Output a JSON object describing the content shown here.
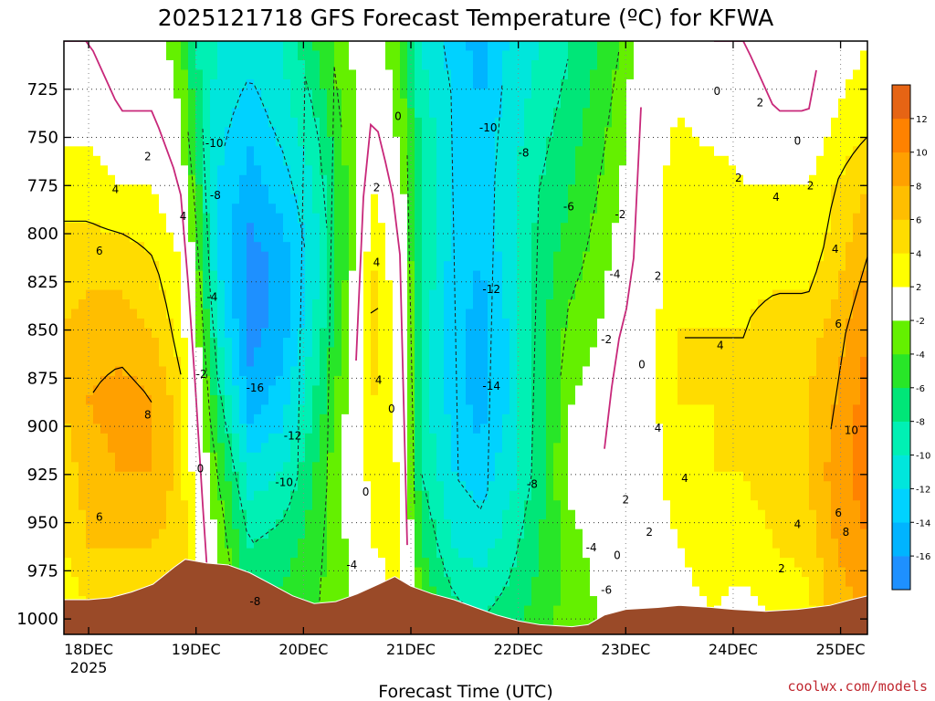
{
  "chart_data": {
    "type": "heatmap",
    "title": "2025121718 GFS Forecast Temperature (ºC) for KFWA",
    "xlabel": "Forecast Time (UTC)",
    "ylabel": "",
    "credit": "coolwx.com/models",
    "x_ticks": [
      {
        "day": 18,
        "label": "18DEC",
        "sublabel": "2025"
      },
      {
        "day": 19,
        "label": "19DEC"
      },
      {
        "day": 20,
        "label": "20DEC"
      },
      {
        "day": 21,
        "label": "21DEC"
      },
      {
        "day": 22,
        "label": "22DEC"
      },
      {
        "day": 23,
        "label": "23DEC"
      },
      {
        "day": 24,
        "label": "24DEC"
      },
      {
        "day": 25,
        "label": "25DEC"
      }
    ],
    "xlim": [
      17.77,
      25.25
    ],
    "y_ticks": [
      725,
      750,
      775,
      800,
      825,
      850,
      875,
      900,
      925,
      950,
      975,
      1000
    ],
    "ylim": [
      700,
      1008
    ],
    "y_axis_inverted": true,
    "colorbar": {
      "levels": [
        -18,
        -16,
        -14,
        -12,
        -10,
        -8,
        -6,
        -4,
        -2,
        2,
        4,
        6,
        8,
        10,
        12,
        14
      ],
      "tick_labels": [
        "-16",
        "-14",
        "-12",
        "-10",
        "-8",
        "-6",
        "-4",
        "-2",
        "2",
        "4",
        "6",
        "8",
        "10",
        "12"
      ],
      "colors": [
        "#1e90ff",
        "#00b4ff",
        "#00d2ff",
        "#00e6dc",
        "#00f0b4",
        "#00e678",
        "#28e628",
        "#64f000",
        "#ffffff",
        "#ffff00",
        "#ffdc00",
        "#ffbe00",
        "#ffa000",
        "#ff8200",
        "#e66414"
      ]
    },
    "terrain_color": "#9a4a28",
    "surface_pressure": [
      {
        "t": 17.77,
        "p": 990
      },
      {
        "t": 18.0,
        "p": 990
      },
      {
        "t": 18.2,
        "p": 989
      },
      {
        "t": 18.4,
        "p": 986
      },
      {
        "t": 18.6,
        "p": 982
      },
      {
        "t": 18.8,
        "p": 973
      },
      {
        "t": 18.9,
        "p": 969
      },
      {
        "t": 19.1,
        "p": 971
      },
      {
        "t": 19.3,
        "p": 972
      },
      {
        "t": 19.5,
        "p": 976
      },
      {
        "t": 19.7,
        "p": 982
      },
      {
        "t": 19.9,
        "p": 988
      },
      {
        "t": 20.1,
        "p": 992
      },
      {
        "t": 20.3,
        "p": 991
      },
      {
        "t": 20.5,
        "p": 987
      },
      {
        "t": 20.7,
        "p": 982
      },
      {
        "t": 20.85,
        "p": 978
      },
      {
        "t": 21.0,
        "p": 983
      },
      {
        "t": 21.2,
        "p": 987
      },
      {
        "t": 21.4,
        "p": 990
      },
      {
        "t": 21.6,
        "p": 994
      },
      {
        "t": 21.8,
        "p": 998
      },
      {
        "t": 22.0,
        "p": 1001
      },
      {
        "t": 22.2,
        "p": 1003
      },
      {
        "t": 22.5,
        "p": 1004
      },
      {
        "t": 22.65,
        "p": 1003
      },
      {
        "t": 22.8,
        "p": 998
      },
      {
        "t": 23.0,
        "p": 995
      },
      {
        "t": 23.3,
        "p": 994
      },
      {
        "t": 23.5,
        "p": 993
      },
      {
        "t": 23.8,
        "p": 994
      },
      {
        "t": 24.0,
        "p": 995
      },
      {
        "t": 24.3,
        "p": 996
      },
      {
        "t": 24.6,
        "p": 995
      },
      {
        "t": 24.9,
        "p": 993
      },
      {
        "t": 25.1,
        "p": 990
      },
      {
        "t": 25.25,
        "p": 988
      }
    ],
    "profiles": [
      {
        "t": 17.77,
        "temps": [
          0,
          1,
          3,
          5,
          6,
          6,
          5,
          4,
          2
        ]
      },
      {
        "t": 18.0,
        "temps": [
          0,
          1,
          3,
          5,
          7,
          8,
          7,
          6,
          4
        ]
      },
      {
        "t": 18.3,
        "temps": [
          -1,
          0,
          2,
          5,
          7,
          9,
          8,
          6,
          5
        ]
      },
      {
        "t": 18.6,
        "temps": [
          -1,
          0,
          2,
          4,
          6,
          8,
          8,
          6,
          5
        ]
      },
      {
        "t": 18.85,
        "temps": [
          -3,
          -2,
          0,
          2,
          3,
          5,
          5,
          5,
          6
        ]
      },
      {
        "t": 19.0,
        "temps": [
          -8,
          -7,
          -5,
          -3,
          -1,
          0,
          1,
          2,
          2
        ]
      },
      {
        "t": 19.2,
        "temps": [
          -10,
          -11,
          -12,
          -12,
          -10,
          -7,
          -4,
          -2,
          -1
        ]
      },
      {
        "t": 19.5,
        "temps": [
          -11,
          -13,
          -15,
          -17,
          -17,
          -15,
          -11,
          -8,
          -6
        ]
      },
      {
        "t": 19.8,
        "temps": [
          -10,
          -11,
          -13,
          -15,
          -15,
          -13,
          -10,
          -7,
          -5
        ]
      },
      {
        "t": 20.1,
        "temps": [
          -6,
          -8,
          -10,
          -11,
          -10,
          -8,
          -6,
          -5,
          -4
        ]
      },
      {
        "t": 20.4,
        "temps": [
          -2,
          -3,
          -4,
          -4,
          -3,
          -2,
          -1,
          -2,
          -3
        ]
      },
      {
        "t": 20.65,
        "temps": [
          -1,
          0,
          2,
          4,
          5,
          4,
          3,
          2,
          0
        ]
      },
      {
        "t": 20.9,
        "temps": [
          -3,
          -3,
          -1,
          0,
          1,
          1,
          2,
          3,
          3
        ]
      },
      {
        "t": 21.1,
        "temps": [
          -10,
          -9,
          -8,
          -8,
          -9,
          -9,
          -8,
          -6,
          -4
        ]
      },
      {
        "t": 21.4,
        "temps": [
          -13,
          -12,
          -12,
          -13,
          -13,
          -13,
          -12,
          -10,
          -7
        ]
      },
      {
        "t": 21.65,
        "temps": [
          -15,
          -14,
          -13,
          -14,
          -15,
          -15,
          -13,
          -11,
          -8
        ]
      },
      {
        "t": 21.9,
        "temps": [
          -12,
          -11,
          -11,
          -11,
          -12,
          -12,
          -11,
          -9,
          -7
        ]
      },
      {
        "t": 22.2,
        "temps": [
          -10,
          -9,
          -8,
          -7,
          -7,
          -7,
          -7,
          -6,
          -5
        ]
      },
      {
        "t": 22.5,
        "temps": [
          -8,
          -7,
          -6,
          -5,
          -3,
          -2,
          -1,
          -3,
          -3
        ]
      },
      {
        "t": 22.75,
        "temps": [
          -6,
          -5,
          -4,
          -3,
          -2,
          -1,
          0,
          -1,
          -2
        ]
      },
      {
        "t": 22.95,
        "temps": [
          -4,
          -3,
          -2,
          -1,
          0,
          1,
          1,
          1,
          0
        ]
      },
      {
        "t": 23.2,
        "temps": [
          0,
          1,
          1,
          1,
          1,
          1,
          1,
          1,
          1
        ]
      },
      {
        "t": 23.5,
        "temps": [
          1,
          2,
          3,
          3,
          4,
          4,
          3,
          2,
          1
        ]
      },
      {
        "t": 23.8,
        "temps": [
          0,
          1,
          3,
          3,
          4,
          4,
          4,
          3,
          2
        ]
      },
      {
        "t": 24.1,
        "temps": [
          0,
          1,
          2,
          3,
          4,
          4,
          4,
          3,
          1
        ]
      },
      {
        "t": 24.4,
        "temps": [
          -1,
          0,
          2,
          3,
          5,
          5,
          5,
          4,
          2
        ]
      },
      {
        "t": 24.7,
        "temps": [
          -1,
          0,
          2,
          3,
          5,
          6,
          6,
          5,
          3
        ]
      },
      {
        "t": 24.95,
        "temps": [
          1,
          2,
          4,
          5,
          7,
          8,
          9,
          8,
          7
        ]
      },
      {
        "t": 25.25,
        "temps": [
          2,
          3,
          6,
          8,
          10,
          11,
          11,
          10,
          8
        ]
      }
    ],
    "profile_pressures": [
      700,
      737,
      775,
      812,
      850,
      887,
      925,
      962,
      1000
    ],
    "contour_labels": [
      {
        "t": 18.55,
        "p": 760,
        "text": "2"
      },
      {
        "t": 18.25,
        "p": 777,
        "text": "4"
      },
      {
        "t": 18.88,
        "p": 791,
        "text": "4"
      },
      {
        "t": 18.1,
        "p": 809,
        "text": "6"
      },
      {
        "t": 18.55,
        "p": 894,
        "text": "8"
      },
      {
        "t": 18.1,
        "p": 947,
        "text": "6"
      },
      {
        "t": 19.05,
        "p": 873,
        "text": "-2"
      },
      {
        "t": 19.04,
        "p": 922,
        "text": "0"
      },
      {
        "t": 19.15,
        "p": 833,
        "text": "-4"
      },
      {
        "t": 19.18,
        "p": 780,
        "text": "-8"
      },
      {
        "t": 19.17,
        "p": 753,
        "text": "-10"
      },
      {
        "t": 19.55,
        "p": 880,
        "text": "-16"
      },
      {
        "t": 19.9,
        "p": 905,
        "text": "-12"
      },
      {
        "t": 19.82,
        "p": 929,
        "text": "-10"
      },
      {
        "t": 19.55,
        "p": 991,
        "text": "-8"
      },
      {
        "t": 20.45,
        "p": 972,
        "text": "-4"
      },
      {
        "t": 20.58,
        "p": 934,
        "text": "0"
      },
      {
        "t": 20.68,
        "p": 776,
        "text": "2"
      },
      {
        "t": 20.68,
        "p": 815,
        "text": "4"
      },
      {
        "t": 20.7,
        "p": 876,
        "text": "4"
      },
      {
        "t": 20.82,
        "p": 891,
        "text": "0"
      },
      {
        "t": 20.88,
        "p": 739,
        "text": "0"
      },
      {
        "t": 21.72,
        "p": 745,
        "text": "-10"
      },
      {
        "t": 22.05,
        "p": 758,
        "text": "-8"
      },
      {
        "t": 22.47,
        "p": 786,
        "text": "-6"
      },
      {
        "t": 21.75,
        "p": 829,
        "text": "-12"
      },
      {
        "t": 21.75,
        "p": 879,
        "text": "-14"
      },
      {
        "t": 22.13,
        "p": 930,
        "text": "-8"
      },
      {
        "t": 22.68,
        "p": 963,
        "text": "-4"
      },
      {
        "t": 22.82,
        "p": 855,
        "text": "-2"
      },
      {
        "t": 22.9,
        "p": 821,
        "text": "-4"
      },
      {
        "t": 22.95,
        "p": 790,
        "text": "-2"
      },
      {
        "t": 22.82,
        "p": 985,
        "text": "-6"
      },
      {
        "t": 23.15,
        "p": 868,
        "text": "0"
      },
      {
        "t": 23.0,
        "p": 938,
        "text": "2"
      },
      {
        "t": 22.92,
        "p": 967,
        "text": "0"
      },
      {
        "t": 23.3,
        "p": 822,
        "text": "2"
      },
      {
        "t": 23.85,
        "p": 726,
        "text": "0"
      },
      {
        "t": 24.25,
        "p": 732,
        "text": "2"
      },
      {
        "t": 24.05,
        "p": 771,
        "text": "2"
      },
      {
        "t": 24.4,
        "p": 781,
        "text": "4"
      },
      {
        "t": 23.88,
        "p": 858,
        "text": "4"
      },
      {
        "t": 23.3,
        "p": 901,
        "text": "4"
      },
      {
        "t": 23.55,
        "p": 927,
        "text": "4"
      },
      {
        "t": 23.22,
        "p": 955,
        "text": "2"
      },
      {
        "t": 24.45,
        "p": 974,
        "text": "2"
      },
      {
        "t": 24.6,
        "p": 951,
        "text": "4"
      },
      {
        "t": 24.6,
        "p": 752,
        "text": "0"
      },
      {
        "t": 24.72,
        "p": 775,
        "text": "2"
      },
      {
        "t": 24.95,
        "p": 808,
        "text": "4"
      },
      {
        "t": 24.98,
        "p": 847,
        "text": "6"
      },
      {
        "t": 25.1,
        "p": 902,
        "text": "10"
      },
      {
        "t": 24.98,
        "p": 945,
        "text": "6"
      },
      {
        "t": 25.05,
        "p": 955,
        "text": "8"
      }
    ]
  }
}
